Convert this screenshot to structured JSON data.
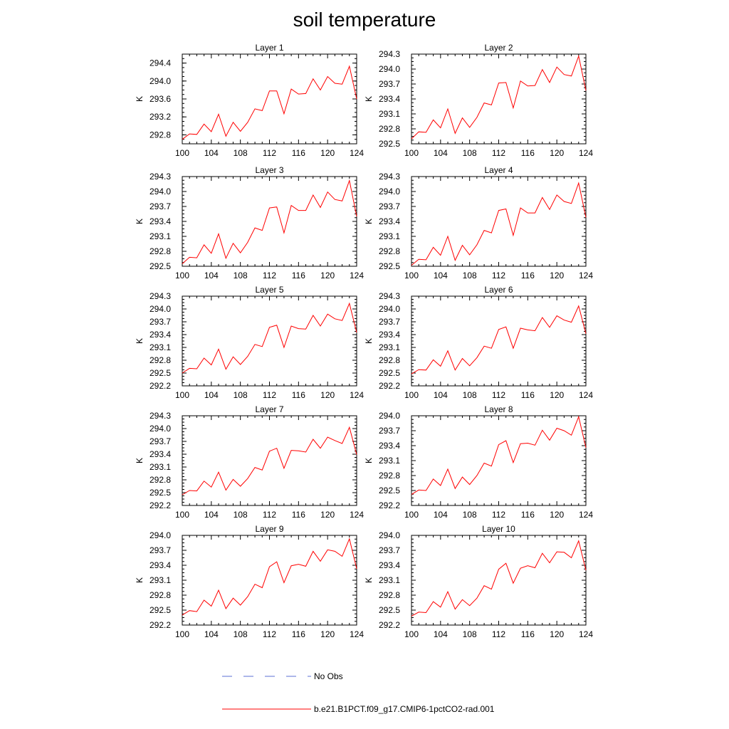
{
  "title": "soil temperature",
  "legend": {
    "items": [
      {
        "label": "No Obs",
        "color": "#5b6fd6",
        "style": "dashed"
      },
      {
        "label": "b.e21.B1PCT.f09_g17.CMIP6-1pctCO2-rad.001",
        "color": "#ff0000",
        "style": "solid"
      }
    ]
  },
  "chart_data": [
    {
      "type": "line",
      "title": "Layer 1",
      "ylabel": "K",
      "xlim": [
        100,
        124
      ],
      "ylim": [
        292.6,
        294.6
      ],
      "xticks": [
        100,
        104,
        108,
        112,
        116,
        120,
        124
      ],
      "yticks": [
        292.8,
        293.2,
        293.6,
        294.0,
        294.4
      ],
      "x": [
        100,
        101,
        102,
        103,
        104,
        105,
        106,
        107,
        108,
        109,
        110,
        111,
        112,
        113,
        114,
        115,
        116,
        117,
        118,
        119,
        120,
        121,
        122,
        123,
        124
      ],
      "series": [
        {
          "color": "#ff0000",
          "values": [
            292.7,
            292.82,
            292.81,
            293.04,
            292.87,
            293.26,
            292.77,
            293.08,
            292.88,
            293.08,
            293.38,
            293.34,
            293.78,
            293.78,
            293.27,
            293.82,
            293.71,
            293.72,
            294.05,
            293.8,
            294.1,
            293.95,
            293.93,
            294.33,
            293.6
          ]
        }
      ]
    },
    {
      "type": "line",
      "title": "Layer 2",
      "ylabel": "K",
      "xlim": [
        100,
        124
      ],
      "ylim": [
        292.5,
        294.3
      ],
      "xticks": [
        100,
        104,
        108,
        112,
        116,
        120,
        124
      ],
      "yticks": [
        292.5,
        292.8,
        293.1,
        293.4,
        293.7,
        294.0,
        294.3
      ],
      "x": [
        100,
        101,
        102,
        103,
        104,
        105,
        106,
        107,
        108,
        109,
        110,
        111,
        112,
        113,
        114,
        115,
        116,
        117,
        118,
        119,
        120,
        121,
        122,
        123,
        124
      ],
      "series": [
        {
          "color": "#ff0000",
          "values": [
            292.6,
            292.74,
            292.73,
            292.98,
            292.82,
            293.2,
            292.71,
            293.02,
            292.83,
            293.03,
            293.32,
            293.28,
            293.72,
            293.73,
            293.22,
            293.76,
            293.66,
            293.67,
            293.99,
            293.73,
            294.04,
            293.89,
            293.86,
            294.26,
            293.57
          ]
        }
      ]
    },
    {
      "type": "line",
      "title": "Layer 3",
      "ylabel": "K",
      "xlim": [
        100,
        124
      ],
      "ylim": [
        292.5,
        294.3
      ],
      "xticks": [
        100,
        104,
        108,
        112,
        116,
        120,
        124
      ],
      "yticks": [
        292.5,
        292.8,
        293.1,
        293.4,
        293.7,
        294.0,
        294.3
      ],
      "x": [
        100,
        101,
        102,
        103,
        104,
        105,
        106,
        107,
        108,
        109,
        110,
        111,
        112,
        113,
        114,
        115,
        116,
        117,
        118,
        119,
        120,
        121,
        122,
        123,
        124
      ],
      "series": [
        {
          "color": "#ff0000",
          "values": [
            292.55,
            292.68,
            292.67,
            292.93,
            292.76,
            293.15,
            292.66,
            292.96,
            292.77,
            292.98,
            293.27,
            293.22,
            293.67,
            293.69,
            293.17,
            293.72,
            293.62,
            293.62,
            293.93,
            293.68,
            293.99,
            293.84,
            293.81,
            294.22,
            293.5
          ]
        }
      ]
    },
    {
      "type": "line",
      "title": "Layer 4",
      "ylabel": "K",
      "xlim": [
        100,
        124
      ],
      "ylim": [
        292.5,
        294.3
      ],
      "xticks": [
        100,
        104,
        108,
        112,
        116,
        120,
        124
      ],
      "yticks": [
        292.5,
        292.8,
        293.1,
        293.4,
        293.7,
        294.0,
        294.3
      ],
      "x": [
        100,
        101,
        102,
        103,
        104,
        105,
        106,
        107,
        108,
        109,
        110,
        111,
        112,
        113,
        114,
        115,
        116,
        117,
        118,
        119,
        120,
        121,
        122,
        123,
        124
      ],
      "series": [
        {
          "color": "#ff0000",
          "values": [
            292.52,
            292.64,
            292.63,
            292.88,
            292.72,
            293.1,
            292.62,
            292.92,
            292.73,
            292.93,
            293.22,
            293.17,
            293.62,
            293.65,
            293.12,
            293.67,
            293.57,
            293.57,
            293.88,
            293.64,
            293.93,
            293.8,
            293.76,
            294.17,
            293.48
          ]
        }
      ]
    },
    {
      "type": "line",
      "title": "Layer 5",
      "ylabel": "K",
      "xlim": [
        100,
        124
      ],
      "ylim": [
        292.2,
        294.3
      ],
      "xticks": [
        100,
        104,
        108,
        112,
        116,
        120,
        124
      ],
      "yticks": [
        292.2,
        292.5,
        292.8,
        293.1,
        293.4,
        293.7,
        294.0,
        294.3
      ],
      "x": [
        100,
        101,
        102,
        103,
        104,
        105,
        106,
        107,
        108,
        109,
        110,
        111,
        112,
        113,
        114,
        115,
        116,
        117,
        118,
        119,
        120,
        121,
        122,
        123,
        124
      ],
      "series": [
        {
          "color": "#ff0000",
          "values": [
            292.5,
            292.61,
            292.6,
            292.85,
            292.69,
            293.06,
            292.59,
            292.88,
            292.7,
            292.89,
            293.17,
            293.12,
            293.57,
            293.62,
            293.1,
            293.6,
            293.54,
            293.53,
            293.85,
            293.6,
            293.88,
            293.77,
            293.73,
            294.13,
            293.45
          ]
        }
      ]
    },
    {
      "type": "line",
      "title": "Layer 6",
      "ylabel": "K",
      "xlim": [
        100,
        124
      ],
      "ylim": [
        292.2,
        294.3
      ],
      "xticks": [
        100,
        104,
        108,
        112,
        116,
        120,
        124
      ],
      "yticks": [
        292.2,
        292.5,
        292.8,
        293.1,
        293.4,
        293.7,
        294.0,
        294.3
      ],
      "x": [
        100,
        101,
        102,
        103,
        104,
        105,
        106,
        107,
        108,
        109,
        110,
        111,
        112,
        113,
        114,
        115,
        116,
        117,
        118,
        119,
        120,
        121,
        122,
        123,
        124
      ],
      "series": [
        {
          "color": "#ff0000",
          "values": [
            292.48,
            292.58,
            292.57,
            292.81,
            292.66,
            293.02,
            292.57,
            292.84,
            292.67,
            292.86,
            293.13,
            293.08,
            293.52,
            293.58,
            293.08,
            293.55,
            293.51,
            293.49,
            293.8,
            293.57,
            293.84,
            293.74,
            293.69,
            294.07,
            293.42
          ]
        }
      ]
    },
    {
      "type": "line",
      "title": "Layer 7",
      "ylabel": "K",
      "xlim": [
        100,
        124
      ],
      "ylim": [
        292.2,
        294.3
      ],
      "xticks": [
        100,
        104,
        108,
        112,
        116,
        120,
        124
      ],
      "yticks": [
        292.2,
        292.5,
        292.8,
        293.1,
        293.4,
        293.7,
        294.0,
        294.3
      ],
      "x": [
        100,
        101,
        102,
        103,
        104,
        105,
        106,
        107,
        108,
        109,
        110,
        111,
        112,
        113,
        114,
        115,
        116,
        117,
        118,
        119,
        120,
        121,
        122,
        123,
        124
      ],
      "series": [
        {
          "color": "#ff0000",
          "values": [
            292.45,
            292.55,
            292.54,
            292.77,
            292.63,
            292.98,
            292.56,
            292.81,
            292.65,
            292.83,
            293.09,
            293.03,
            293.47,
            293.54,
            293.07,
            293.49,
            293.48,
            293.45,
            293.75,
            293.54,
            293.8,
            293.72,
            293.65,
            294.03,
            293.39
          ]
        }
      ]
    },
    {
      "type": "line",
      "title": "Layer 8",
      "ylabel": "K",
      "xlim": [
        100,
        124
      ],
      "ylim": [
        292.2,
        294.0
      ],
      "xticks": [
        100,
        104,
        108,
        112,
        116,
        120,
        124
      ],
      "yticks": [
        292.2,
        292.5,
        292.8,
        293.1,
        293.4,
        293.7,
        294.0
      ],
      "x": [
        100,
        101,
        102,
        103,
        104,
        105,
        106,
        107,
        108,
        109,
        110,
        111,
        112,
        113,
        114,
        115,
        116,
        117,
        118,
        119,
        120,
        121,
        122,
        123,
        124
      ],
      "series": [
        {
          "color": "#ff0000",
          "values": [
            292.42,
            292.51,
            292.5,
            292.73,
            292.6,
            292.93,
            292.54,
            292.77,
            292.62,
            292.8,
            293.05,
            292.99,
            293.42,
            293.5,
            293.06,
            293.44,
            293.45,
            293.41,
            293.71,
            293.51,
            293.75,
            293.7,
            293.61,
            293.98,
            293.36
          ]
        }
      ]
    },
    {
      "type": "line",
      "title": "Layer 9",
      "ylabel": "K",
      "xlim": [
        100,
        124
      ],
      "ylim": [
        292.2,
        294.0
      ],
      "xticks": [
        100,
        104,
        108,
        112,
        116,
        120,
        124
      ],
      "yticks": [
        292.2,
        292.5,
        292.8,
        293.1,
        293.4,
        293.7,
        294.0
      ],
      "x": [
        100,
        101,
        102,
        103,
        104,
        105,
        106,
        107,
        108,
        109,
        110,
        111,
        112,
        113,
        114,
        115,
        116,
        117,
        118,
        119,
        120,
        121,
        122,
        123,
        124
      ],
      "series": [
        {
          "color": "#ff0000",
          "values": [
            292.4,
            292.49,
            292.47,
            292.7,
            292.58,
            292.9,
            292.53,
            292.74,
            292.6,
            292.77,
            293.02,
            292.95,
            293.37,
            293.47,
            293.05,
            293.39,
            293.42,
            293.38,
            293.68,
            293.48,
            293.71,
            293.68,
            293.58,
            293.93,
            293.33
          ]
        }
      ]
    },
    {
      "type": "line",
      "title": "Layer 10",
      "ylabel": "K",
      "xlim": [
        100,
        124
      ],
      "ylim": [
        292.2,
        294.0
      ],
      "xticks": [
        100,
        104,
        108,
        112,
        116,
        120,
        124
      ],
      "yticks": [
        292.2,
        292.5,
        292.8,
        293.1,
        293.4,
        293.7,
        294.0
      ],
      "x": [
        100,
        101,
        102,
        103,
        104,
        105,
        106,
        107,
        108,
        109,
        110,
        111,
        112,
        113,
        114,
        115,
        116,
        117,
        118,
        119,
        120,
        121,
        122,
        123,
        124
      ],
      "series": [
        {
          "color": "#ff0000",
          "values": [
            292.38,
            292.46,
            292.45,
            292.67,
            292.56,
            292.87,
            292.52,
            292.71,
            292.59,
            292.74,
            292.99,
            292.92,
            293.32,
            293.44,
            293.04,
            293.34,
            293.39,
            293.35,
            293.64,
            293.45,
            293.67,
            293.66,
            293.55,
            293.89,
            293.3
          ]
        }
      ]
    }
  ]
}
